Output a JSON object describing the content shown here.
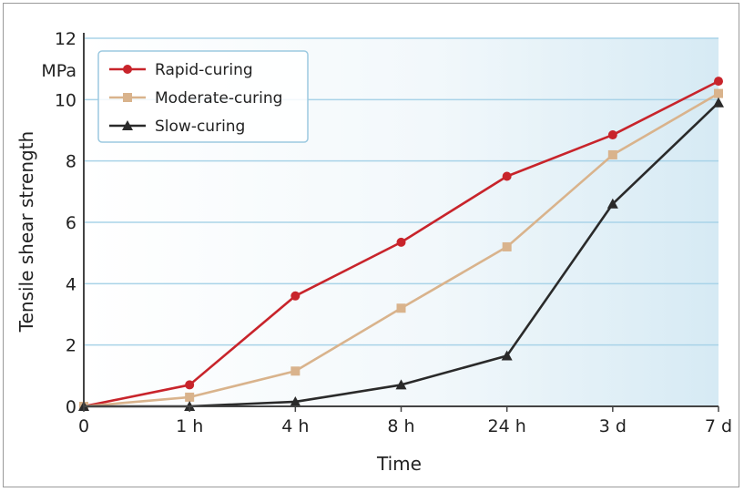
{
  "chart_data": {
    "type": "line",
    "categories": [
      "0",
      "1 h",
      "4 h",
      "8 h",
      "24 h",
      "3 d",
      "7 d"
    ],
    "series": [
      {
        "name": "Rapid-curing",
        "values": [
          0,
          0.7,
          3.6,
          5.35,
          7.5,
          8.85,
          10.6
        ],
        "color": "#c8242b",
        "marker": "circle"
      },
      {
        "name": "Moderate-curing",
        "values": [
          0,
          0.3,
          1.15,
          3.2,
          5.2,
          8.2,
          10.2
        ],
        "color": "#d9b38c",
        "marker": "square"
      },
      {
        "name": "Slow-curing",
        "values": [
          0,
          0,
          0.15,
          0.7,
          1.65,
          6.6,
          9.9
        ],
        "color": "#2a2a2a",
        "marker": "triangle"
      }
    ],
    "y_ticks": [
      "0",
      "2",
      "4",
      "6",
      "8",
      "10",
      "12"
    ],
    "ylim": [
      0,
      12
    ],
    "xlabel": "Time",
    "ylabel": "Tensile shear strength",
    "yunit": "MPa",
    "grid": true,
    "legend_position": "top-left",
    "plot_background": "#dcedf5",
    "gridline_color": "#a9d3e8"
  }
}
